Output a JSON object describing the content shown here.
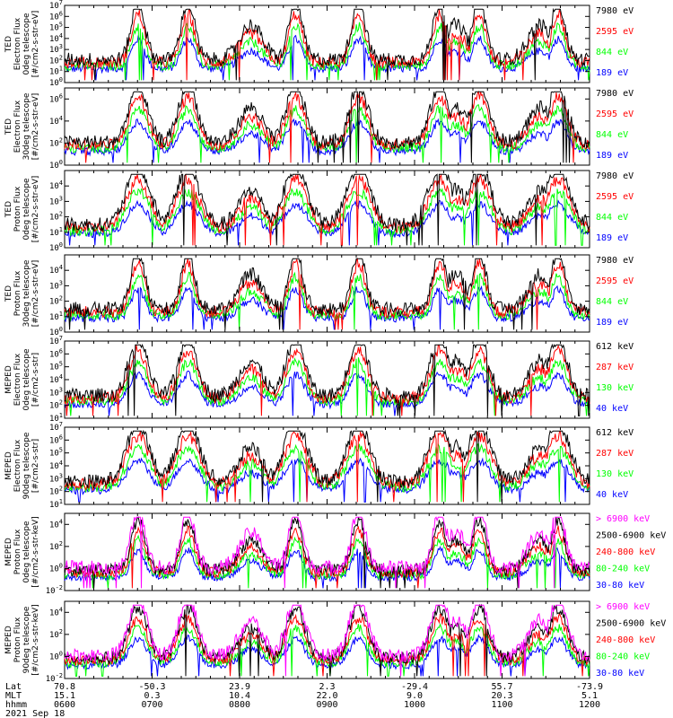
{
  "colors": {
    "blue": "#0000ff",
    "red": "#ff0000",
    "green": "#00ff00",
    "black": "#000000",
    "magenta": "#ff00ff"
  },
  "chart_data": [
    {
      "type": "line",
      "ylabel": [
        "TED",
        "Electron Flux",
        "0deg telescope",
        "[#/cm2-s-str-eV]"
      ],
      "ylim_exp": [
        0,
        7
      ],
      "yscale": "log",
      "yticks": [
        {
          "exp": 0,
          "label": "10",
          "sup": "0"
        },
        {
          "exp": 1,
          "label": "10",
          "sup": "1"
        },
        {
          "exp": 2,
          "label": "10",
          "sup": "2"
        },
        {
          "exp": 3,
          "label": "10",
          "sup": "3"
        },
        {
          "exp": 4,
          "label": "10",
          "sup": "4"
        },
        {
          "exp": 5,
          "label": "10",
          "sup": "5"
        },
        {
          "exp": 6,
          "label": "10",
          "sup": "6"
        },
        {
          "exp": 7,
          "label": "10",
          "sup": "7"
        }
      ],
      "series": [
        {
          "name": "7980 eV",
          "color": "black"
        },
        {
          "name": "2595 eV",
          "color": "red"
        },
        {
          "name": "844 eV",
          "color": "green"
        },
        {
          "name": "189 eV",
          "color": "blue"
        }
      ]
    },
    {
      "type": "line",
      "ylabel": [
        "TED",
        "Electron Flux",
        "30deg telescope",
        "[#/cm2-s-str-eV]"
      ],
      "ylim_exp": [
        0,
        7
      ],
      "yscale": "log",
      "yticks": [
        {
          "exp": 0,
          "label": "10",
          "sup": "0"
        },
        {
          "exp": 2,
          "label": "10",
          "sup": "2"
        },
        {
          "exp": 4,
          "label": "10",
          "sup": "4"
        },
        {
          "exp": 6,
          "label": "10",
          "sup": "6"
        }
      ],
      "series": [
        {
          "name": "7980 eV",
          "color": "black"
        },
        {
          "name": "2595 eV",
          "color": "red"
        },
        {
          "name": "844 eV",
          "color": "green"
        },
        {
          "name": "189 eV",
          "color": "blue"
        }
      ]
    },
    {
      "type": "line",
      "ylabel": [
        "TED",
        "Proton Flux",
        "0deg telescope",
        "[#/cm2-s-str-eV]"
      ],
      "ylim_exp": [
        0,
        5
      ],
      "yscale": "log",
      "yticks": [
        {
          "exp": 0,
          "label": "10",
          "sup": "0"
        },
        {
          "exp": 1,
          "label": "10",
          "sup": "1"
        },
        {
          "exp": 2,
          "label": "10",
          "sup": "2"
        },
        {
          "exp": 3,
          "label": "10",
          "sup": "3"
        },
        {
          "exp": 4,
          "label": "10",
          "sup": "4"
        }
      ],
      "series": [
        {
          "name": "7980 eV",
          "color": "black"
        },
        {
          "name": "2595 eV",
          "color": "red"
        },
        {
          "name": "844 eV",
          "color": "green"
        },
        {
          "name": "189 eV",
          "color": "blue"
        }
      ]
    },
    {
      "type": "line",
      "ylabel": [
        "TED",
        "Proton Flux",
        "30deg telescope",
        "[#/cm2-s-str-eV]"
      ],
      "ylim_exp": [
        0,
        5
      ],
      "yscale": "log",
      "yticks": [
        {
          "exp": 0,
          "label": "10",
          "sup": "0"
        },
        {
          "exp": 1,
          "label": "10",
          "sup": "1"
        },
        {
          "exp": 2,
          "label": "10",
          "sup": "2"
        },
        {
          "exp": 3,
          "label": "10",
          "sup": "3"
        },
        {
          "exp": 4,
          "label": "10",
          "sup": "4"
        }
      ],
      "series": [
        {
          "name": "7980 eV",
          "color": "black"
        },
        {
          "name": "2595 eV",
          "color": "red"
        },
        {
          "name": "844 eV",
          "color": "green"
        },
        {
          "name": "189 eV",
          "color": "blue"
        }
      ]
    },
    {
      "type": "line",
      "ylabel": [
        "MEPED",
        "Electron Flux",
        "0deg telescope",
        "[#/cm2-s-str]"
      ],
      "ylim_exp": [
        1,
        7
      ],
      "yscale": "log",
      "yticks": [
        {
          "exp": 1,
          "label": "10",
          "sup": "1"
        },
        {
          "exp": 2,
          "label": "10",
          "sup": "2"
        },
        {
          "exp": 3,
          "label": "10",
          "sup": "3"
        },
        {
          "exp": 4,
          "label": "10",
          "sup": "4"
        },
        {
          "exp": 5,
          "label": "10",
          "sup": "5"
        },
        {
          "exp": 6,
          "label": "10",
          "sup": "6"
        },
        {
          "exp": 7,
          "label": "10",
          "sup": "7"
        }
      ],
      "series": [
        {
          "name": "612 keV",
          "color": "black"
        },
        {
          "name": "287 keV",
          "color": "red"
        },
        {
          "name": "130 keV",
          "color": "green"
        },
        {
          "name": "40 keV",
          "color": "blue"
        }
      ]
    },
    {
      "type": "line",
      "ylabel": [
        "MEPED",
        "Electron Flux",
        "90deg telescope",
        "[#/cm2-s-str]"
      ],
      "ylim_exp": [
        1,
        7
      ],
      "yscale": "log",
      "yticks": [
        {
          "exp": 1,
          "label": "10",
          "sup": "1"
        },
        {
          "exp": 2,
          "label": "10",
          "sup": "2"
        },
        {
          "exp": 3,
          "label": "10",
          "sup": "3"
        },
        {
          "exp": 4,
          "label": "10",
          "sup": "4"
        },
        {
          "exp": 5,
          "label": "10",
          "sup": "5"
        },
        {
          "exp": 6,
          "label": "10",
          "sup": "6"
        },
        {
          "exp": 7,
          "label": "10",
          "sup": "7"
        }
      ],
      "series": [
        {
          "name": "612 keV",
          "color": "black"
        },
        {
          "name": "287 keV",
          "color": "red"
        },
        {
          "name": "130 keV",
          "color": "green"
        },
        {
          "name": "40 keV",
          "color": "blue"
        }
      ]
    },
    {
      "type": "line",
      "ylabel": [
        "MEPED",
        "Proton Flux",
        "0deg telescope",
        "[#/cm2-s-str-keV]"
      ],
      "ylim_exp": [
        -2,
        5
      ],
      "yscale": "log",
      "yticks": [
        {
          "exp": -2,
          "label": "10",
          "sup": "-2"
        },
        {
          "exp": 0,
          "label": "10",
          "sup": "0"
        },
        {
          "exp": 2,
          "label": "10",
          "sup": "2"
        },
        {
          "exp": 4,
          "label": "10",
          "sup": "4"
        }
      ],
      "series": [
        {
          "name": "> 6900 keV",
          "color": "magenta"
        },
        {
          "name": "2500-6900 keV",
          "color": "black"
        },
        {
          "name": "240-800 keV",
          "color": "red"
        },
        {
          "name": "80-240 keV",
          "color": "green"
        },
        {
          "name": "30-80 keV",
          "color": "blue"
        }
      ]
    },
    {
      "type": "line",
      "ylabel": [
        "MEPED",
        "Proton Flux",
        "90deg telescope",
        "[#/cm2-s-str-keV]"
      ],
      "ylim_exp": [
        -2,
        5
      ],
      "yscale": "log",
      "yticks": [
        {
          "exp": -2,
          "label": "10",
          "sup": "-2"
        },
        {
          "exp": 0,
          "label": "10",
          "sup": "0"
        },
        {
          "exp": 2,
          "label": "10",
          "sup": "2"
        },
        {
          "exp": 4,
          "label": "10",
          "sup": "4"
        }
      ],
      "series": [
        {
          "name": "> 6900 keV",
          "color": "magenta"
        },
        {
          "name": "2500-6900 keV",
          "color": "black"
        },
        {
          "name": "240-800 keV",
          "color": "red"
        },
        {
          "name": "80-240 keV",
          "color": "green"
        },
        {
          "name": "30-80 keV",
          "color": "blue"
        }
      ]
    }
  ],
  "x_axis": {
    "row_labels": [
      "Lat",
      "MLT",
      "hhmm"
    ],
    "ticks": [
      {
        "lat": "70.8",
        "mlt": "15.1",
        "hhmm": "0600"
      },
      {
        "lat": "-50.3",
        "mlt": "0.3",
        "hhmm": "0700"
      },
      {
        "lat": "23.9",
        "mlt": "10.4",
        "hhmm": "0800"
      },
      {
        "lat": "2.3",
        "mlt": "22.0",
        "hhmm": "0900"
      },
      {
        "lat": "-29.4",
        "mlt": "9.0",
        "hhmm": "1000"
      },
      {
        "lat": "55.7",
        "mlt": "20.3",
        "hhmm": "1100"
      },
      {
        "lat": "-73.9",
        "mlt": "5.1",
        "hhmm": "1200"
      }
    ],
    "date": "2021 Sep 18"
  }
}
